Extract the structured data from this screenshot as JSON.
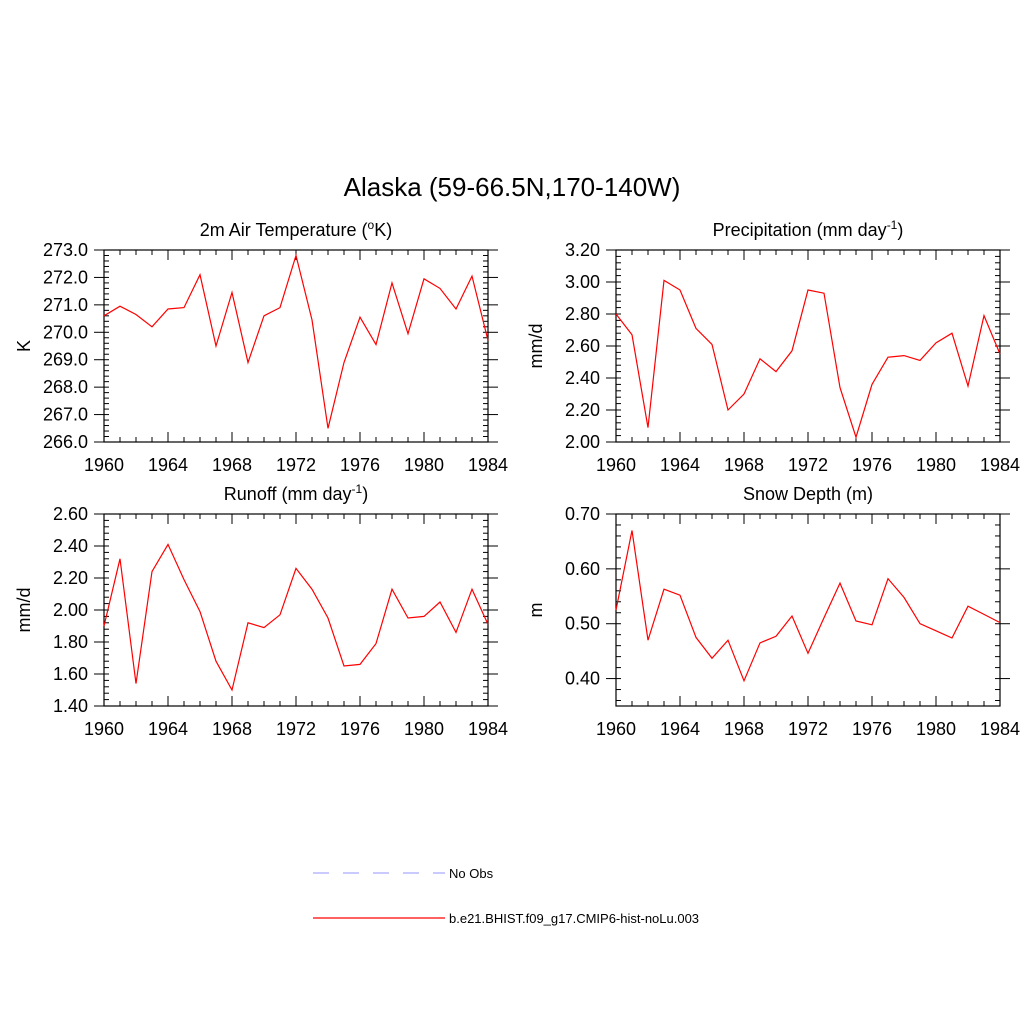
{
  "title": "Alaska (59-66.5N,170-140W)",
  "colors": {
    "model": "#ff0000",
    "obs": "#aaaaff",
    "axis": "#000000"
  },
  "legend": [
    {
      "label": "No Obs",
      "style": "dashed",
      "color": "#aaaaff"
    },
    {
      "label": "b.e21.BHIST.f09_g17.CMIP6-hist-noLu.003",
      "style": "solid",
      "color": "#ff0000"
    }
  ],
  "chart_data": [
    {
      "type": "line",
      "title": "2m Air Temperature (",
      "title_sup": "o",
      "title_tail": "K)",
      "ylabel": "K",
      "xlim": [
        1960,
        1984
      ],
      "ylim": [
        266.0,
        273.0
      ],
      "yticks": [
        "266.0",
        "267.0",
        "268.0",
        "269.0",
        "270.0",
        "271.0",
        "272.0",
        "273.0"
      ],
      "xticks": [
        "1960",
        "1964",
        "1968",
        "1972",
        "1976",
        "1980",
        "1984"
      ],
      "x": [
        1960,
        1961,
        1962,
        1963,
        1964,
        1965,
        1966,
        1967,
        1968,
        1969,
        1970,
        1971,
        1972,
        1973,
        1974,
        1975,
        1976,
        1977,
        1978,
        1979,
        1980,
        1981,
        1982,
        1983,
        1984
      ],
      "series": [
        {
          "name": "b.e21.BHIST.f09_g17.CMIP6-hist-noLu.003",
          "values": [
            270.6,
            270.95,
            270.65,
            270.2,
            270.85,
            270.9,
            272.1,
            269.5,
            271.45,
            268.9,
            270.6,
            270.9,
            272.8,
            270.45,
            266.5,
            268.9,
            270.55,
            269.55,
            271.8,
            269.95,
            271.95,
            271.6,
            270.85,
            272.05,
            269.7
          ]
        }
      ]
    },
    {
      "type": "line",
      "title": "Precipitation (mm day",
      "title_sup": "-1",
      "title_tail": ")",
      "ylabel": "mm/d",
      "xlim": [
        1960,
        1984
      ],
      "ylim": [
        2.0,
        3.2
      ],
      "yticks": [
        "2.00",
        "2.20",
        "2.40",
        "2.60",
        "2.80",
        "3.00",
        "3.20"
      ],
      "xticks": [
        "1960",
        "1964",
        "1968",
        "1972",
        "1976",
        "1980",
        "1984"
      ],
      "x": [
        1960,
        1961,
        1962,
        1963,
        1964,
        1965,
        1966,
        1967,
        1968,
        1969,
        1970,
        1971,
        1972,
        1973,
        1974,
        1975,
        1976,
        1977,
        1978,
        1979,
        1980,
        1981,
        1982,
        1983,
        1984
      ],
      "series": [
        {
          "name": "b.e21.BHIST.f09_g17.CMIP6-hist-noLu.003",
          "values": [
            2.8,
            2.67,
            2.09,
            3.01,
            2.95,
            2.71,
            2.61,
            2.2,
            2.3,
            2.52,
            2.44,
            2.57,
            2.95,
            2.93,
            2.34,
            2.03,
            2.36,
            2.53,
            2.54,
            2.51,
            2.62,
            2.68,
            2.35,
            2.79,
            2.55
          ]
        }
      ]
    },
    {
      "type": "line",
      "title": "Runoff (mm day",
      "title_sup": "-1",
      "title_tail": ")",
      "ylabel": "mm/d",
      "xlim": [
        1960,
        1984
      ],
      "ylim": [
        1.4,
        2.6
      ],
      "yticks": [
        "1.40",
        "1.60",
        "1.80",
        "2.00",
        "2.20",
        "2.40",
        "2.60"
      ],
      "xticks": [
        "1960",
        "1964",
        "1968",
        "1972",
        "1976",
        "1980",
        "1984"
      ],
      "x": [
        1960,
        1961,
        1962,
        1963,
        1964,
        1965,
        1966,
        1967,
        1968,
        1969,
        1970,
        1971,
        1972,
        1973,
        1974,
        1975,
        1976,
        1977,
        1978,
        1979,
        1980,
        1981,
        1982,
        1983,
        1984
      ],
      "series": [
        {
          "name": "b.e21.BHIST.f09_g17.CMIP6-hist-noLu.003",
          "values": [
            1.9,
            2.32,
            1.54,
            2.24,
            2.41,
            2.19,
            1.99,
            1.68,
            1.5,
            1.92,
            1.89,
            1.97,
            2.26,
            2.13,
            1.95,
            1.65,
            1.66,
            1.79,
            2.13,
            1.95,
            1.96,
            2.05,
            1.86,
            2.13,
            1.91
          ]
        }
      ]
    },
    {
      "type": "line",
      "title": "Snow Depth (m)",
      "title_sup": "",
      "title_tail": "",
      "ylabel": "m",
      "xlim": [
        1960,
        1984
      ],
      "ylim": [
        0.35,
        0.7
      ],
      "yticks": [
        "0.40",
        "0.50",
        "0.60",
        "0.70"
      ],
      "ytick_values": [
        0.4,
        0.5,
        0.6,
        0.7
      ],
      "xticks": [
        "1960",
        "1964",
        "1968",
        "1972",
        "1976",
        "1980",
        "1984"
      ],
      "x": [
        1960,
        1961,
        1962,
        1963,
        1964,
        1965,
        1966,
        1967,
        1968,
        1969,
        1970,
        1971,
        1972,
        1973,
        1974,
        1975,
        1976,
        1977,
        1978,
        1979,
        1980,
        1981,
        1982,
        1983,
        1984
      ],
      "series": [
        {
          "name": "b.e21.BHIST.f09_g17.CMIP6-hist-noLu.003",
          "values": [
            0.525,
            0.67,
            0.47,
            0.563,
            0.552,
            0.475,
            0.437,
            0.47,
            0.396,
            0.465,
            0.477,
            0.514,
            0.446,
            0.511,
            0.574,
            0.505,
            0.498,
            0.582,
            0.548,
            0.5,
            0.487,
            0.474,
            0.532,
            0.517,
            0.502
          ]
        }
      ]
    }
  ]
}
